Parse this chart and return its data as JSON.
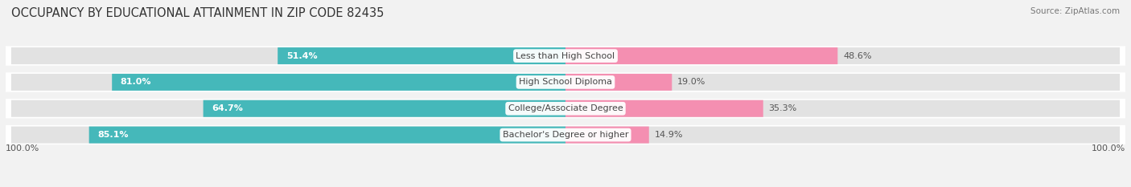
{
  "title": "OCCUPANCY BY EDUCATIONAL ATTAINMENT IN ZIP CODE 82435",
  "source": "Source: ZipAtlas.com",
  "categories": [
    "Less than High School",
    "High School Diploma",
    "College/Associate Degree",
    "Bachelor's Degree or higher"
  ],
  "owner_pct": [
    51.4,
    81.0,
    64.7,
    85.1
  ],
  "renter_pct": [
    48.6,
    19.0,
    35.3,
    14.9
  ],
  "owner_color": "#45B8BA",
  "renter_color": "#F48FB1",
  "bg_color": "#F2F2F2",
  "bar_bg_color": "#E2E2E2",
  "row_bg_color": "#EBEBEB",
  "title_fontsize": 10.5,
  "label_fontsize": 8.0,
  "pct_fontsize": 8.0,
  "tick_fontsize": 8.0,
  "source_fontsize": 7.5,
  "bar_height": 0.62,
  "y_axis_label_left": "100.0%",
  "y_axis_label_right": "100.0%"
}
